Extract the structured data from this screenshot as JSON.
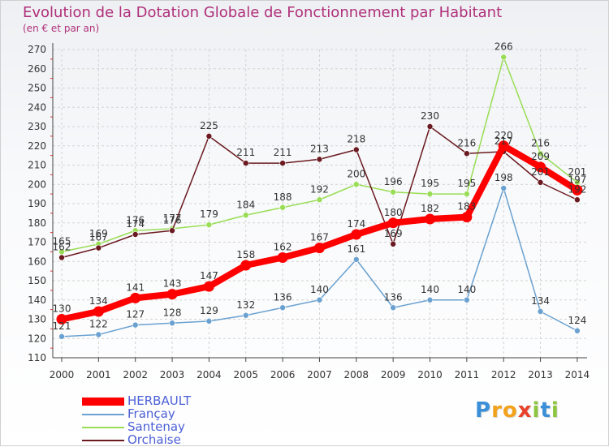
{
  "title": "Evolution de la Dotation Globale de Fonctionnement par Habitant",
  "subtitle": "(en € et par an)",
  "logo": {
    "p": "P",
    "r": "r",
    "o": "o",
    "x": "x",
    "i1": "i",
    "t": "t",
    "i2": "i"
  },
  "colors": {
    "title": "#b0307a",
    "axis_text": "#333333",
    "grid": "#d3d3d3",
    "legend_text": "#4b5fd6",
    "herbault": "#ff0000",
    "francay": "#6aa1d0",
    "santenay": "#99dd55",
    "orchaise": "#6a1a20"
  },
  "chart_data": {
    "type": "line",
    "title": "Evolution de la Dotation Globale de Fonctionnement par Habitant",
    "subtitle": "(en € et par an)",
    "xlabel": "",
    "ylabel": "",
    "x": [
      2000,
      2001,
      2002,
      2003,
      2004,
      2005,
      2006,
      2007,
      2008,
      2009,
      2010,
      2011,
      2012,
      2013,
      2014
    ],
    "ylim": [
      110,
      270
    ],
    "yticks": [
      110,
      120,
      130,
      140,
      150,
      160,
      170,
      180,
      190,
      200,
      210,
      220,
      230,
      240,
      250,
      260,
      270
    ],
    "grid": true,
    "legend_position": "bottom-left",
    "series": [
      {
        "name": "HERBAULT",
        "key": "herbault",
        "color": "#ff0000",
        "emphasis": true,
        "values": [
          130,
          134,
          141,
          143,
          147,
          158,
          162,
          167,
          174,
          180,
          182,
          183,
          220,
          209,
          197
        ]
      },
      {
        "name": "Françay",
        "key": "francay",
        "color": "#6aa1d0",
        "emphasis": false,
        "values": [
          121,
          122,
          127,
          128,
          129,
          132,
          136,
          140,
          161,
          136,
          140,
          140,
          198,
          134,
          124
        ]
      },
      {
        "name": "Santenay",
        "key": "santenay",
        "color": "#99dd55",
        "emphasis": false,
        "values": [
          165,
          169,
          176,
          177,
          179,
          184,
          188,
          192,
          200,
          196,
          195,
          195,
          266,
          216,
          201
        ]
      },
      {
        "name": "Orchaise",
        "key": "orchaise",
        "color": "#6a1a20",
        "emphasis": false,
        "values": [
          162,
          167,
          174,
          176,
          225,
          211,
          211,
          213,
          218,
          169,
          230,
          216,
          217,
          201,
          192
        ]
      }
    ]
  }
}
